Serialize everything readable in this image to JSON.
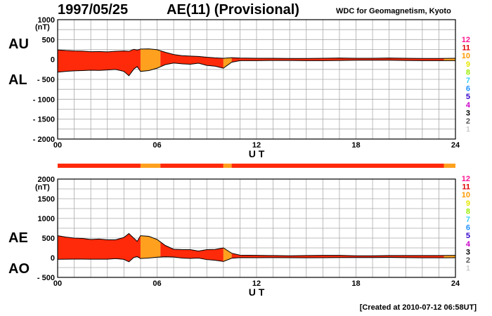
{
  "header": {
    "date": "1997/05/25",
    "title": "AE(11) (Provisional)",
    "institution": "WDC for Geomagnetism, Kyoto"
  },
  "footer": {
    "created": "[Created at 2010-07-12 06:58UT]"
  },
  "legend": {
    "labels": [
      "12",
      "11",
      "10",
      "9",
      "8",
      "7",
      "6",
      "5",
      "4",
      "3",
      "2",
      "1"
    ],
    "colors": [
      "#ff1493",
      "#e00000",
      "#ff9900",
      "#e6e600",
      "#99ee00",
      "#33ccff",
      "#1e90ff",
      "#3300cc",
      "#cc00cc",
      "#000000",
      "#555555",
      "#cccccc"
    ]
  },
  "station_colors": {
    "11": "#ff2a0a",
    "10": "#ffa01e"
  },
  "chart_data": [
    {
      "type": "area",
      "name": "AU/AL",
      "ylabels": [
        "AU",
        "AL"
      ],
      "unit": "(nT)",
      "xlabel": "U T",
      "ylim": [
        -2000,
        1000
      ],
      "xlim": [
        0,
        24
      ],
      "yticks": [
        1000,
        500,
        0,
        -500,
        -1000,
        -1500,
        -2000
      ],
      "ytick_labels": [
        "1000",
        "500",
        "0",
        "- 500",
        "- 1000",
        "- 1500",
        "- 2000"
      ],
      "xticks": [
        0,
        6,
        12,
        18,
        24
      ],
      "xtick_labels": [
        "00",
        "06",
        "12",
        "18",
        "24"
      ],
      "grid": true,
      "x": [
        0,
        0.5,
        1,
        1.5,
        2,
        2.5,
        3,
        3.5,
        4,
        4.3,
        4.6,
        4.8,
        5,
        5.5,
        6,
        6.5,
        7,
        7.5,
        8,
        8.5,
        9,
        9.5,
        10,
        10.5,
        11,
        12,
        13,
        14,
        15,
        16,
        17,
        18,
        19,
        20,
        21,
        22,
        23,
        24
      ],
      "series": [
        {
          "name": "AU",
          "values": [
            240,
            225,
            215,
            210,
            195,
            200,
            190,
            205,
            215,
            205,
            255,
            235,
            260,
            265,
            245,
            180,
            125,
            95,
            85,
            75,
            55,
            40,
            30,
            45,
            35,
            30,
            30,
            25,
            25,
            30,
            35,
            30,
            30,
            35,
            30,
            25,
            25,
            30
          ]
        },
        {
          "name": "AL",
          "values": [
            -320,
            -300,
            -285,
            -280,
            -270,
            -275,
            -265,
            -250,
            -300,
            -410,
            -240,
            -180,
            -300,
            -280,
            -220,
            -130,
            -90,
            -110,
            -120,
            -95,
            -150,
            -170,
            -220,
            -70,
            -30,
            -30,
            -25,
            -25,
            -30,
            -30,
            -25,
            -20,
            -20,
            -20,
            -25,
            -30,
            -30,
            -30
          ]
        }
      ],
      "station_count_segments": [
        {
          "from": 0,
          "to": 5,
          "stations": "11"
        },
        {
          "from": 5,
          "to": 6.2,
          "stations": "10"
        },
        {
          "from": 6.2,
          "to": 10,
          "stations": "11"
        },
        {
          "from": 10,
          "to": 10.5,
          "stations": "10"
        },
        {
          "from": 10.5,
          "to": 23.3,
          "stations": "11"
        },
        {
          "from": 23.3,
          "to": 24,
          "stations": "10"
        }
      ]
    },
    {
      "type": "area",
      "name": "AE/AO",
      "ylabels": [
        "AE",
        "AO"
      ],
      "unit": "(nT)",
      "xlabel": "U T",
      "ylim": [
        -500,
        2000
      ],
      "xlim": [
        0,
        24
      ],
      "yticks": [
        2000,
        1500,
        1000,
        500,
        0,
        -500
      ],
      "ytick_labels": [
        "2000",
        "1500",
        "1000",
        "500",
        "0",
        "- 500"
      ],
      "xticks": [
        0,
        6,
        12,
        18,
        24
      ],
      "xtick_labels": [
        "00",
        "06",
        "12",
        "18",
        "24"
      ],
      "grid": true,
      "x": [
        0,
        0.5,
        1,
        1.5,
        2,
        2.5,
        3,
        3.5,
        4,
        4.3,
        4.6,
        4.8,
        5,
        5.5,
        6,
        6.5,
        7,
        7.5,
        8,
        8.5,
        9,
        9.5,
        10,
        10.5,
        11,
        12,
        13,
        14,
        15,
        16,
        17,
        18,
        19,
        20,
        21,
        22,
        23,
        24
      ],
      "series": [
        {
          "name": "AE",
          "values": [
            560,
            525,
            500,
            490,
            465,
            475,
            455,
            455,
            515,
            615,
            495,
            415,
            560,
            545,
            465,
            310,
            215,
            205,
            205,
            170,
            205,
            210,
            250,
            115,
            65,
            60,
            55,
            50,
            55,
            60,
            60,
            50,
            50,
            55,
            55,
            55,
            55,
            60
          ]
        },
        {
          "name": "AO",
          "values": [
            -40,
            -37,
            -35,
            -35,
            -38,
            -38,
            -38,
            -22,
            -43,
            -103,
            8,
            28,
            -20,
            -8,
            13,
            25,
            18,
            -8,
            -18,
            -10,
            -48,
            -65,
            -95,
            -13,
            3,
            0,
            3,
            0,
            -3,
            0,
            5,
            5,
            5,
            8,
            3,
            -3,
            -3,
            0
          ]
        }
      ],
      "station_count_segments": [
        {
          "from": 0,
          "to": 5,
          "stations": "11"
        },
        {
          "from": 5,
          "to": 6.2,
          "stations": "10"
        },
        {
          "from": 6.2,
          "to": 10,
          "stations": "11"
        },
        {
          "from": 10,
          "to": 10.5,
          "stations": "10"
        },
        {
          "from": 10.5,
          "to": 23.3,
          "stations": "11"
        },
        {
          "from": 23.3,
          "to": 24,
          "stations": "10"
        }
      ]
    }
  ]
}
